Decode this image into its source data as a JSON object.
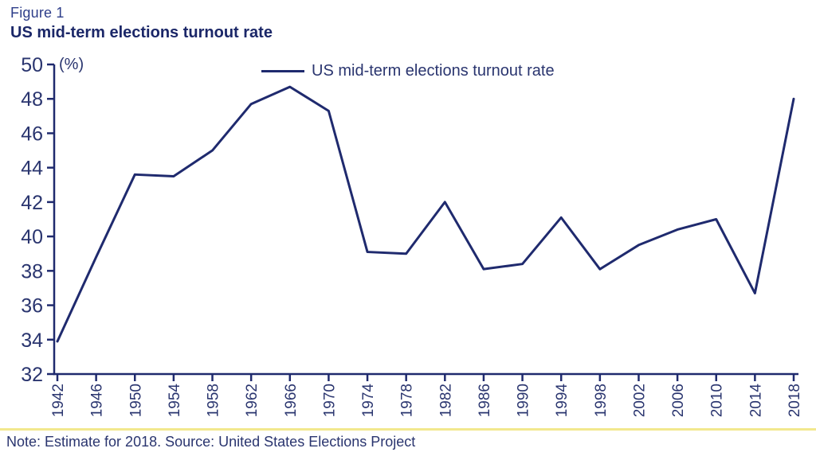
{
  "header": {
    "figure_label": "Figure 1",
    "title": "US mid-term elections turnout rate"
  },
  "footer": {
    "note": "Note: Estimate for 2018. Source: United States Elections Project"
  },
  "colors": {
    "navy": "#1F2A6E",
    "text_navy": "#2A356F",
    "separator_yellow": "#F2E88E"
  },
  "chart_data": {
    "type": "line",
    "title": "US mid-term elections turnout rate",
    "x": [
      1942,
      1946,
      1950,
      1954,
      1958,
      1962,
      1966,
      1970,
      1974,
      1978,
      1982,
      1986,
      1990,
      1994,
      1998,
      2002,
      2006,
      2010,
      2014,
      2018
    ],
    "series": [
      {
        "name": "US mid-term elections turnout rate",
        "values": [
          33.9,
          38.8,
          43.6,
          43.5,
          45.0,
          47.7,
          48.7,
          47.3,
          39.1,
          39.0,
          42.0,
          38.1,
          38.4,
          41.1,
          38.1,
          39.5,
          40.4,
          41.0,
          36.7,
          48.0
        ]
      }
    ],
    "ylabel": "(%)",
    "ylim": [
      32,
      50
    ],
    "ytick_step": 2,
    "xtick_labels": [
      "1942",
      "1946",
      "1950",
      "1954",
      "1958",
      "1962",
      "1966",
      "1970",
      "1974",
      "1978",
      "1982",
      "1986",
      "1990",
      "1994",
      "1998",
      "2002",
      "2006",
      "2010",
      "2014",
      "2018"
    ],
    "grid": false,
    "legend_position": "top-center"
  }
}
